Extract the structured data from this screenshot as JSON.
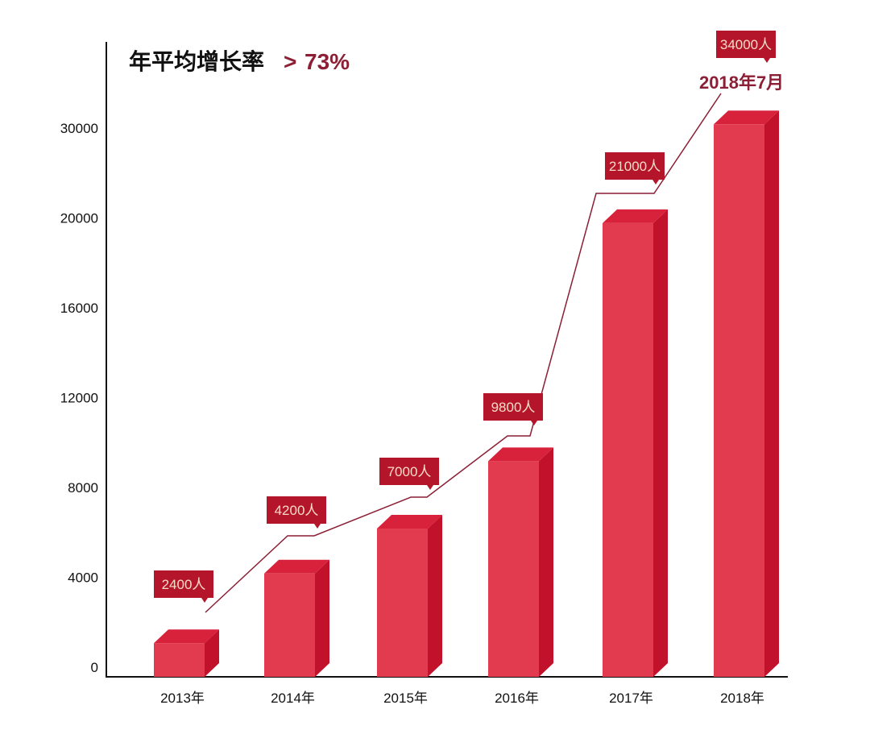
{
  "chart_data": {
    "type": "bar",
    "title": "年平均增长率",
    "subtitle_prefix": ">",
    "growth_rate": "73%",
    "annotation": "2018年7月",
    "categories": [
      "2013年",
      "2014年",
      "2015年",
      "2016年",
      "2017年",
      "2018年"
    ],
    "labels": [
      "2400人",
      "4200人",
      "7000人",
      "9800人",
      "21000人",
      "34000人"
    ],
    "values": [
      2400,
      4200,
      7000,
      9800,
      21000,
      34000
    ],
    "bar_levels_read_from_axis": [
      1500,
      4600,
      6600,
      9600,
      20500,
      31500
    ],
    "yticks": [
      "0",
      "4000",
      "8000",
      "12000",
      "16000",
      "20000",
      "30000"
    ],
    "ytick_values": [
      0,
      4000,
      8000,
      12000,
      16000,
      20000,
      30000
    ],
    "xlabel": "",
    "ylabel": "",
    "grid": false,
    "colors": {
      "bar_front": "#e23a4f",
      "bar_side": "#c2112a",
      "bar_top": "#d8213a",
      "label_bg": "#b5152b",
      "line": "#8c1f35"
    }
  }
}
